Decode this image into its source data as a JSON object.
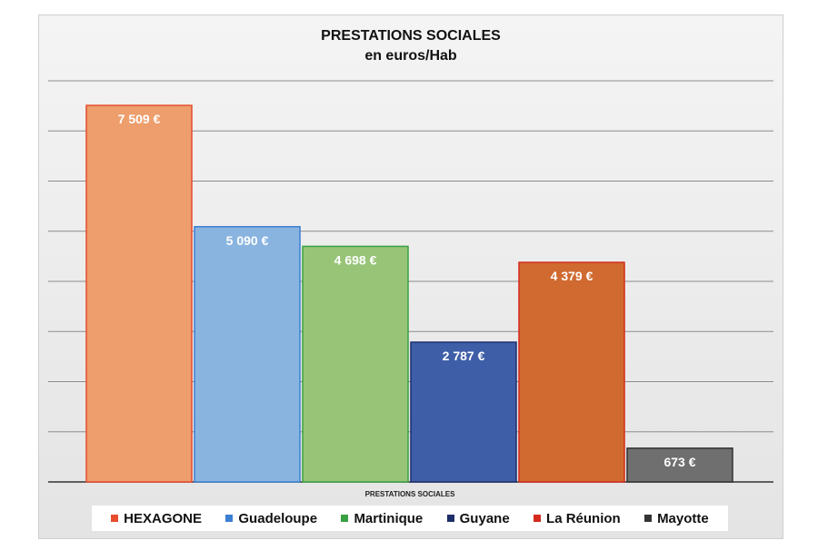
{
  "chart_data": {
    "type": "bar",
    "title": "PRESTATIONS SOCIALES",
    "subtitle": "en euros/Hab",
    "xlabel": "PRESTATIONS SOCIALES",
    "ylabel": "",
    "ylim": [
      0,
      8000
    ],
    "grid": true,
    "legend_position": "bottom",
    "categories": [
      "PRESTATIONS SOCIALES"
    ],
    "series": [
      {
        "name": "HEXAGONE",
        "value": 7509,
        "label": "7 509 €",
        "color": "#ed9e6c",
        "legend_color": "#e74c2e"
      },
      {
        "name": "Guadeloupe",
        "value": 5090,
        "label": "5 090 €",
        "color": "#8ab4e0",
        "legend_color": "#3a7fd1"
      },
      {
        "name": "Martinique",
        "value": 4698,
        "label": "4 698 €",
        "color": "#98c478",
        "legend_color": "#3aa043"
      },
      {
        "name": "Guyane",
        "value": 2787,
        "label": "2 787 €",
        "color": "#3f5ea8",
        "legend_color": "#1d2e6b"
      },
      {
        "name": "La Réunion",
        "value": 4379,
        "label": "4 379 €",
        "color": "#d06a30",
        "legend_color": "#d42a1e"
      },
      {
        "name": "Mayotte",
        "value": 673,
        "label": "673 €",
        "color": "#6f6f6f",
        "legend_color": "#333333"
      }
    ]
  }
}
